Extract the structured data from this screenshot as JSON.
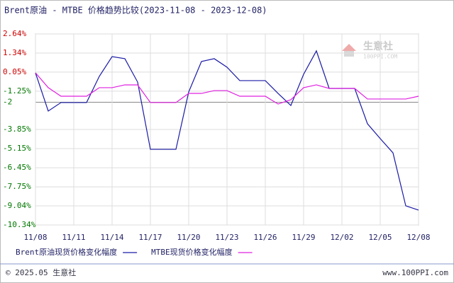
{
  "chart_data": {
    "type": "line",
    "title": "Brent原油 - MTBE 价格趋势比较(2023-11-08 - 2023-12-08)",
    "categories": [
      "11/08",
      null,
      null,
      "11/11",
      null,
      null,
      "11/14",
      null,
      null,
      "11/17",
      null,
      null,
      "11/20",
      null,
      null,
      "11/23",
      null,
      null,
      "11/26",
      null,
      null,
      "11/29",
      null,
      null,
      "12/02",
      null,
      null,
      "12/05",
      null,
      null,
      "12/08"
    ],
    "series": [
      {
        "name": "Brent原油现货价格变化幅度",
        "color": "#1a1aa6",
        "values": [
          0.0,
          -2.6,
          -2.02,
          -2.02,
          -2.02,
          -0.24,
          1.1,
          0.96,
          -0.63,
          -5.2,
          -5.2,
          -5.2,
          -1.3,
          0.77,
          0.96,
          0.38,
          -0.53,
          -0.53,
          -0.53,
          -1.4,
          -2.22,
          -0.1,
          1.49,
          -1.06,
          -1.06,
          -1.06,
          -3.46,
          -4.47,
          -5.44,
          -9.04,
          -9.33
        ]
      },
      {
        "name": "MTBE现货价格变化幅度",
        "color": "#e020e0",
        "values": [
          0.0,
          -1.01,
          -1.59,
          -1.59,
          -1.59,
          -1.01,
          -1.01,
          -0.82,
          -0.82,
          -2.02,
          -2.02,
          -2.02,
          -1.4,
          -1.4,
          -1.21,
          -1.21,
          -1.59,
          -1.59,
          -1.59,
          -2.12,
          -1.83,
          -1.01,
          -0.82,
          -1.06,
          -1.06,
          -1.06,
          -1.78,
          -1.78,
          -1.78,
          -1.78,
          -1.59
        ]
      }
    ],
    "ylim": [
      -10.34,
      2.64
    ],
    "yticks": [
      {
        "value": 2.64,
        "label": "2.64%"
      },
      {
        "value": 1.34,
        "label": "1.34%"
      },
      {
        "value": 0.05,
        "label": "0.05%"
      },
      {
        "value": -1.25,
        "label": "-1.25%"
      },
      -2,
      {
        "value": -3.85,
        "label": "-3.85%"
      },
      {
        "value": -5.15,
        "label": "-5.15%"
      },
      {
        "value": -6.45,
        "label": "-6.45%"
      },
      {
        "value": -7.75,
        "label": "-7.75%"
      },
      {
        "value": -9.04,
        "label": "-9.04%"
      },
      {
        "value": -10.34,
        "label": "-10.34%"
      }
    ],
    "grid": true,
    "legend": "bottom"
  },
  "watermark": {
    "name": "生意社",
    "site": "100PPI.COM"
  },
  "footer": {
    "copyright": "© 2025.05 生意社",
    "site": "www.100PPI.com"
  }
}
